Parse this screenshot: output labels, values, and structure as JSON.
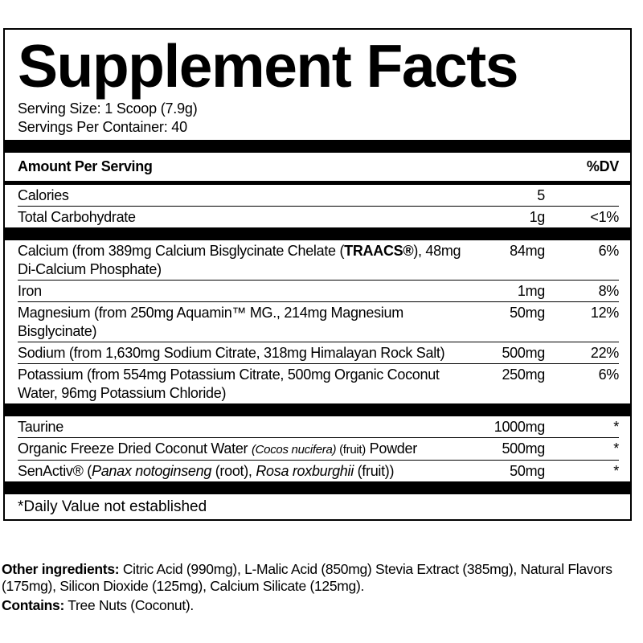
{
  "title": "Supplement Facts",
  "serving_size": "Serving Size: 1 Scoop (7.9g)",
  "servings_per_container": "Servings Per Container: 40",
  "header": {
    "amount": "Amount Per Serving",
    "dv": "%DV"
  },
  "groups": [
    [
      {
        "name": [
          {
            "text": "Calories"
          }
        ],
        "amount": "5"
      },
      {
        "name": [
          {
            "text": "Total Carbohydrate"
          }
        ],
        "amount": "1g",
        "dv": "<1%"
      }
    ],
    [
      {
        "name": [
          {
            "text": "Calcium (from 389mg Calcium Bisglycinate Chelate ("
          },
          {
            "text": "TRAACS®",
            "style": "bold"
          },
          {
            "text": "), 48mg Di-Calcium Phosphate)"
          }
        ],
        "amount": "84mg",
        "dv": "6%"
      },
      {
        "name": [
          {
            "text": "Iron"
          }
        ],
        "amount": "1mg",
        "dv": "8%"
      },
      {
        "name": [
          {
            "text": "Magnesium (from 250mg Aquamin™ MG., 214mg Magnesium Bisglycinate)"
          }
        ],
        "amount": "50mg",
        "dv": "12%"
      },
      {
        "name": [
          {
            "text": "Sodium (from 1,630mg Sodium Citrate, 318mg Himalayan Rock Salt)"
          }
        ],
        "amount": "500mg",
        "dv": "22%"
      },
      {
        "name": [
          {
            "text": "Potassium (from 554mg Potassium Citrate, 500mg Organic Coconut Water, 96mg Potassium Chloride)"
          }
        ],
        "amount": "250mg",
        "dv": "6%"
      }
    ],
    [
      {
        "name": [
          {
            "text": "Taurine"
          }
        ],
        "amount": "1000mg",
        "dv": "*"
      },
      {
        "name": [
          {
            "text": "Organic Freeze Dried Coconut Water "
          },
          {
            "text": "(Cocos nucifera)",
            "style": "italic-small"
          },
          {
            "text": " (fruit)",
            "style": "small"
          },
          {
            "text": " Powder"
          }
        ],
        "amount": "500mg",
        "dv": "*"
      },
      {
        "name": [
          {
            "text": "SenActiv® ("
          },
          {
            "text": "Panax notoginseng",
            "style": "italic"
          },
          {
            "text": " (root), "
          },
          {
            "text": "Rosa roxburghii",
            "style": "italic"
          },
          {
            "text": " (fruit))"
          }
        ],
        "amount": "50mg",
        "dv": "*"
      }
    ]
  ],
  "footnote": "*Daily Value not established",
  "other_ingredients": {
    "label": "Other ingredients:",
    "text": " Citric Acid (990mg), L-Malic Acid (850mg) Stevia Extract (385mg), Natural Flavors (175mg), Silicon Dioxide (125mg), Calcium Silicate (125mg)."
  },
  "contains": {
    "label": "Contains:",
    "text": " Tree Nuts (Coconut)."
  }
}
